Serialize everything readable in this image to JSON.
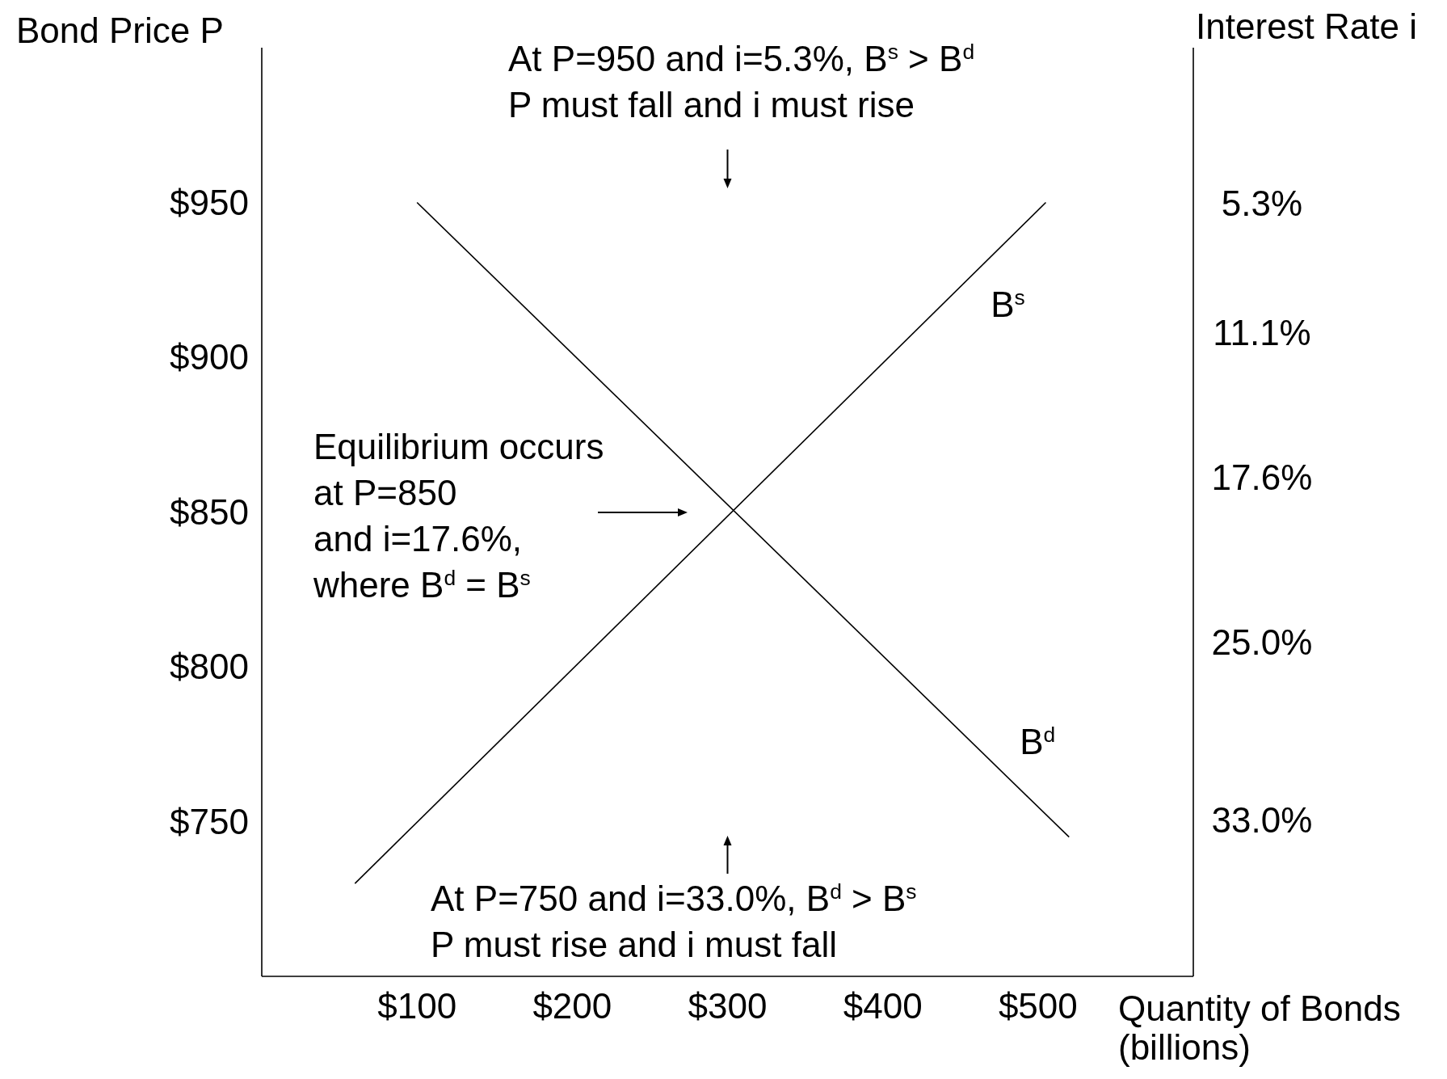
{
  "chart_data": {
    "type": "line",
    "xlabel": "Quantity of Bonds\n(billions)",
    "ylabel": "Bond Price P",
    "y2label": "Interest Rate i",
    "xlim": [
      0,
      600
    ],
    "ylim": [
      700,
      1000
    ],
    "y2lim": [
      40,
      -1.7
    ],
    "xticks": [
      {
        "value": 100,
        "label": "$100"
      },
      {
        "value": 200,
        "label": "$200"
      },
      {
        "value": 300,
        "label": "$300"
      },
      {
        "value": 400,
        "label": "$400"
      },
      {
        "value": 500,
        "label": "$500"
      }
    ],
    "yticks": [
      {
        "value": 750,
        "label": "$750"
      },
      {
        "value": 800,
        "label": "$800"
      },
      {
        "value": 850,
        "label": "$850"
      },
      {
        "value": 900,
        "label": "$900"
      },
      {
        "value": 950,
        "label": "$950"
      }
    ],
    "y2ticks": [
      {
        "value": 33,
        "label": "33.0%"
      },
      {
        "value": 25,
        "label": "25.0%"
      },
      {
        "value": 17.6,
        "label": "17.6%"
      },
      {
        "value": 11.1,
        "label": "11.1%"
      },
      {
        "value": 5.3,
        "label": "5.3%"
      }
    ],
    "series": [
      {
        "name": "B$^{s}$",
        "color": "#000000",
        "x": [
          60,
          505
        ],
        "values": [
          730,
          950
        ]
      },
      {
        "name": "B$^{d}$",
        "color": "#000000",
        "x": [
          100,
          520
        ],
        "values": [
          950,
          745
        ]
      }
    ],
    "annotations": [
      "At P=950 and i=5.3%, B$^{s}$ > B$^{d}$\nP must fall and i must rise",
      "At P=750 and i=33.0%, B$^{d}$ > B$^{s}$\nP must rise and i must fall",
      "Equilibrium occurs\nat P=850\nand i=17.6%,\nwhere B$^{d}$ = B$^{s}$"
    ],
    "grid": false,
    "marker": "none",
    "line_style": "solid"
  }
}
